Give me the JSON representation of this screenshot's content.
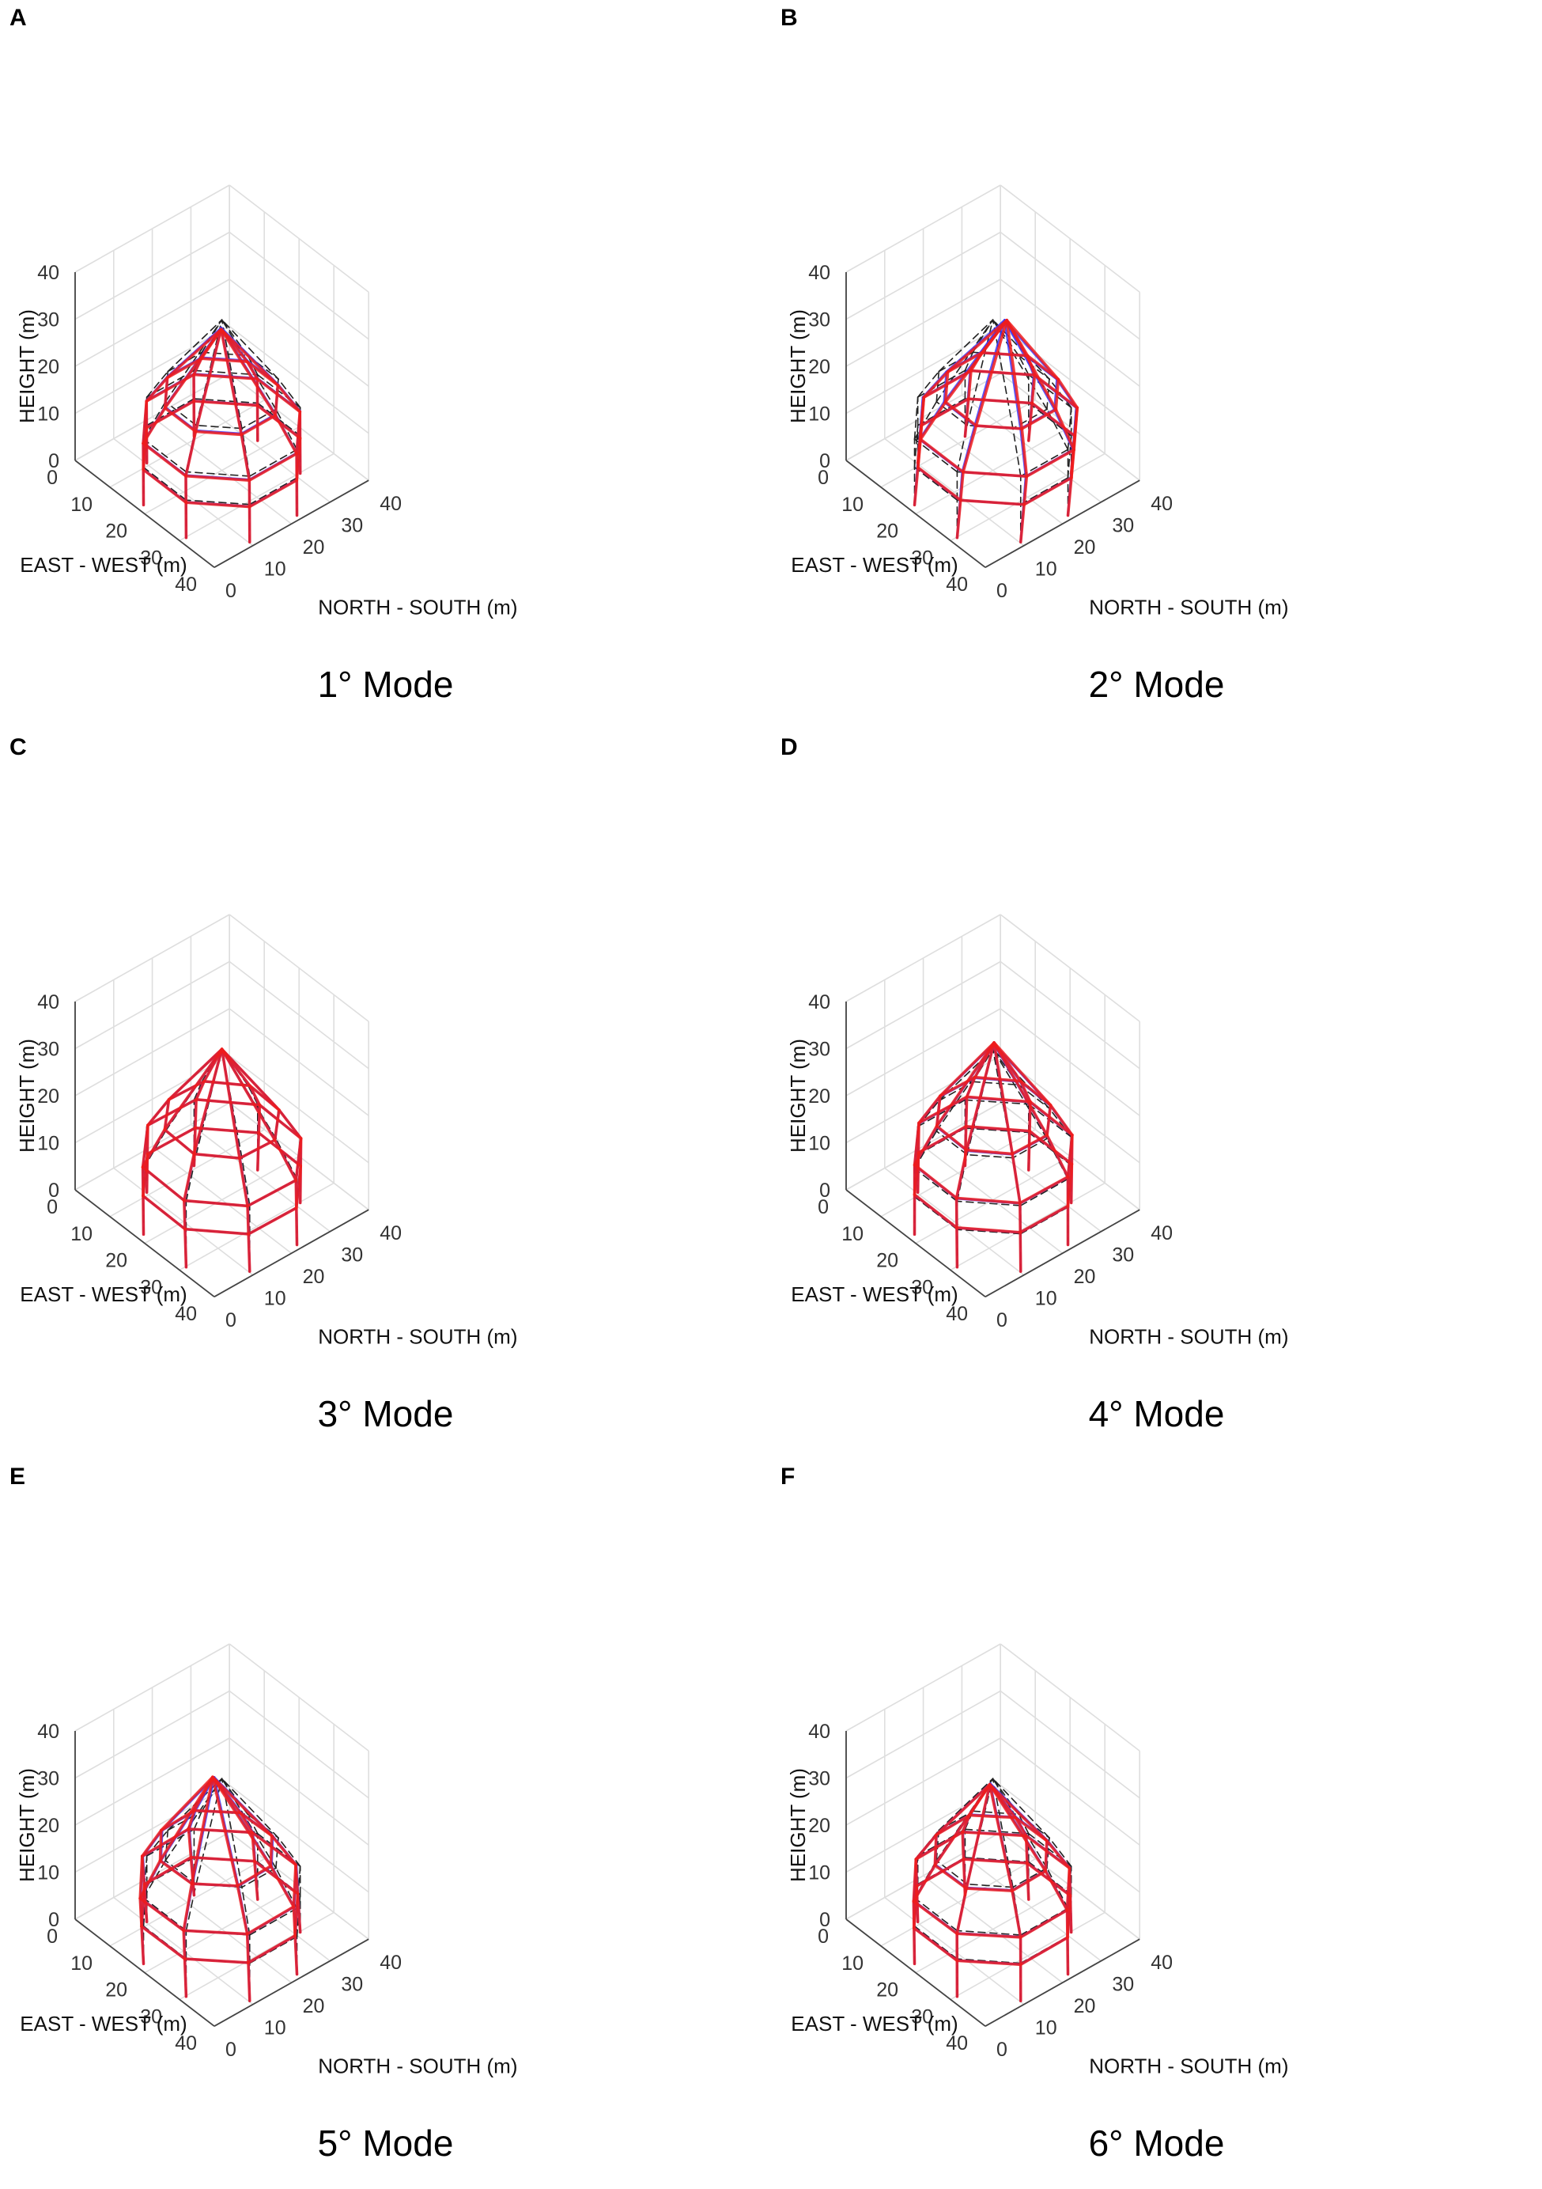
{
  "figure": {
    "panels": [
      {
        "letter": "A",
        "caption": "1° Mode"
      },
      {
        "letter": "B",
        "caption": "2° Mode"
      },
      {
        "letter": "C",
        "caption": "3° Mode"
      },
      {
        "letter": "D",
        "caption": "4° Mode"
      },
      {
        "letter": "E",
        "caption": "5° Mode"
      },
      {
        "letter": "F",
        "caption": "6° Mode"
      }
    ]
  },
  "chart_data": [
    {
      "panel": "A",
      "type": "3d-wireframe",
      "title": "1° Mode",
      "xlabel": "NORTH - SOUTH (m)",
      "ylabel": "EAST - WEST (m)",
      "zlabel": "HEIGHT (m)",
      "xlim": [
        0,
        40
      ],
      "ylim": [
        0,
        40
      ],
      "zlim": [
        0,
        40
      ],
      "xticks": [
        0,
        10,
        20,
        30,
        40
      ],
      "yticks": [
        0,
        10,
        20,
        30,
        40
      ],
      "zticks": [
        0,
        10,
        20,
        30,
        40
      ],
      "center": [
        20,
        20
      ],
      "radius": 16,
      "sides": 8,
      "apex_height": 32,
      "ring_heights": [
        4,
        10,
        17
      ],
      "base_height": -4,
      "series": [
        {
          "name": "undeformed",
          "color": "#222222",
          "style": "dashed"
        },
        {
          "name": "deformed (blue)",
          "color": "#3a3aff",
          "style": "solid"
        },
        {
          "name": "deformed (red)",
          "color": "#ee1c1c",
          "style": "solid"
        }
      ],
      "mode_shape": {
        "kind": "translate",
        "dx": -2.2,
        "dy": 2.2,
        "dth": 0
      }
    },
    {
      "panel": "B",
      "type": "3d-wireframe",
      "title": "2° Mode",
      "xlabel": "NORTH - SOUTH (m)",
      "ylabel": "EAST - WEST (m)",
      "zlabel": "HEIGHT (m)",
      "xlim": [
        0,
        40
      ],
      "ylim": [
        0,
        40
      ],
      "zlim": [
        0,
        40
      ],
      "xticks": [
        0,
        10,
        20,
        30,
        40
      ],
      "yticks": [
        0,
        10,
        20,
        30,
        40
      ],
      "zticks": [
        0,
        10,
        20,
        30,
        40
      ],
      "center": [
        20,
        20
      ],
      "radius": 16,
      "sides": 8,
      "apex_height": 32,
      "ring_heights": [
        4,
        10,
        17
      ],
      "base_height": -4,
      "series": [
        {
          "name": "undeformed",
          "color": "#222222",
          "style": "dashed"
        },
        {
          "name": "deformed (blue)",
          "color": "#3a3aff",
          "style": "solid"
        },
        {
          "name": "deformed (red)",
          "color": "#ee1c1c",
          "style": "solid"
        }
      ],
      "mode_shape": {
        "kind": "translate",
        "dx": 2.2,
        "dy": 2.0,
        "dth": 0
      }
    },
    {
      "panel": "C",
      "type": "3d-wireframe",
      "title": "3° Mode",
      "xlabel": "NORTH - SOUTH (m)",
      "ylabel": "EAST - WEST (m)",
      "zlabel": "HEIGHT (m)",
      "xlim": [
        0,
        40
      ],
      "ylim": [
        0,
        40
      ],
      "zlim": [
        0,
        40
      ],
      "xticks": [
        0,
        10,
        20,
        30,
        40
      ],
      "yticks": [
        0,
        10,
        20,
        30,
        40
      ],
      "zticks": [
        0,
        10,
        20,
        30,
        40
      ],
      "center": [
        20,
        20
      ],
      "radius": 16,
      "sides": 8,
      "apex_height": 32,
      "ring_heights": [
        4,
        10,
        17
      ],
      "base_height": -4,
      "series": [
        {
          "name": "undeformed",
          "color": "#222222",
          "style": "dashed"
        },
        {
          "name": "deformed (blue)",
          "color": "#3a3aff",
          "style": "solid"
        },
        {
          "name": "deformed (red)",
          "color": "#ee1c1c",
          "style": "solid"
        }
      ],
      "mode_shape": {
        "kind": "torsion",
        "dx": 0,
        "dy": 0,
        "dth": 0.07
      }
    },
    {
      "panel": "D",
      "type": "3d-wireframe",
      "title": "4° Mode",
      "xlabel": "NORTH - SOUTH (m)",
      "ylabel": "EAST - WEST (m)",
      "zlabel": "HEIGHT (m)",
      "xlim": [
        0,
        40
      ],
      "ylim": [
        0,
        40
      ],
      "zlim": [
        0,
        40
      ],
      "xticks": [
        0,
        10,
        20,
        30,
        40
      ],
      "yticks": [
        0,
        10,
        20,
        30,
        40
      ],
      "zticks": [
        0,
        10,
        20,
        30,
        40
      ],
      "center": [
        20,
        20
      ],
      "radius": 16,
      "sides": 8,
      "apex_height": 32,
      "ring_heights": [
        4,
        10,
        17
      ],
      "base_height": -4,
      "series": [
        {
          "name": "undeformed",
          "color": "#222222",
          "style": "dashed"
        },
        {
          "name": "deformed (blue)",
          "color": "#3a3aff",
          "style": "solid"
        },
        {
          "name": "deformed (red)",
          "color": "#ee1c1c",
          "style": "solid"
        }
      ],
      "mode_shape": {
        "kind": "mixed",
        "dx": 1.6,
        "dy": -1.4,
        "dth": 0.04
      }
    },
    {
      "panel": "E",
      "type": "3d-wireframe",
      "title": "5° Mode",
      "xlabel": "NORTH - SOUTH (m)",
      "ylabel": "EAST - WEST (m)",
      "zlabel": "HEIGHT (m)",
      "xlim": [
        0,
        40
      ],
      "ylim": [
        0,
        40
      ],
      "zlim": [
        0,
        40
      ],
      "xticks": [
        0,
        10,
        20,
        30,
        40
      ],
      "yticks": [
        0,
        10,
        20,
        30,
        40
      ],
      "zticks": [
        0,
        10,
        20,
        30,
        40
      ],
      "center": [
        20,
        20
      ],
      "radius": 16,
      "sides": 8,
      "apex_height": 32,
      "ring_heights": [
        4,
        10,
        17
      ],
      "base_height": -4,
      "series": [
        {
          "name": "undeformed",
          "color": "#222222",
          "style": "dashed"
        },
        {
          "name": "deformed (blue)",
          "color": "#3a3aff",
          "style": "solid"
        },
        {
          "name": "deformed (red)",
          "color": "#ee1c1c",
          "style": "solid"
        }
      ],
      "mode_shape": {
        "kind": "mixed",
        "dx": -1.2,
        "dy": -1.6,
        "dth": -0.05
      }
    },
    {
      "panel": "F",
      "type": "3d-wireframe",
      "title": "6° Mode",
      "xlabel": "NORTH - SOUTH (m)",
      "ylabel": "EAST - WEST (m)",
      "zlabel": "HEIGHT (m)",
      "xlim": [
        0,
        40
      ],
      "ylim": [
        0,
        40
      ],
      "zlim": [
        0,
        40
      ],
      "xticks": [
        0,
        10,
        20,
        30,
        40
      ],
      "yticks": [
        0,
        10,
        20,
        30,
        40
      ],
      "zticks": [
        0,
        10,
        20,
        30,
        40
      ],
      "center": [
        20,
        20
      ],
      "radius": 16,
      "sides": 8,
      "apex_height": 32,
      "ring_heights": [
        4,
        10,
        17
      ],
      "base_height": -4,
      "series": [
        {
          "name": "undeformed",
          "color": "#222222",
          "style": "dashed"
        },
        {
          "name": "deformed (blue)",
          "color": "#3a3aff",
          "style": "solid"
        },
        {
          "name": "deformed (red)",
          "color": "#ee1c1c",
          "style": "solid"
        }
      ],
      "mode_shape": {
        "kind": "mixed",
        "dx": -1.8,
        "dy": 1.0,
        "dth": -0.04
      }
    }
  ]
}
